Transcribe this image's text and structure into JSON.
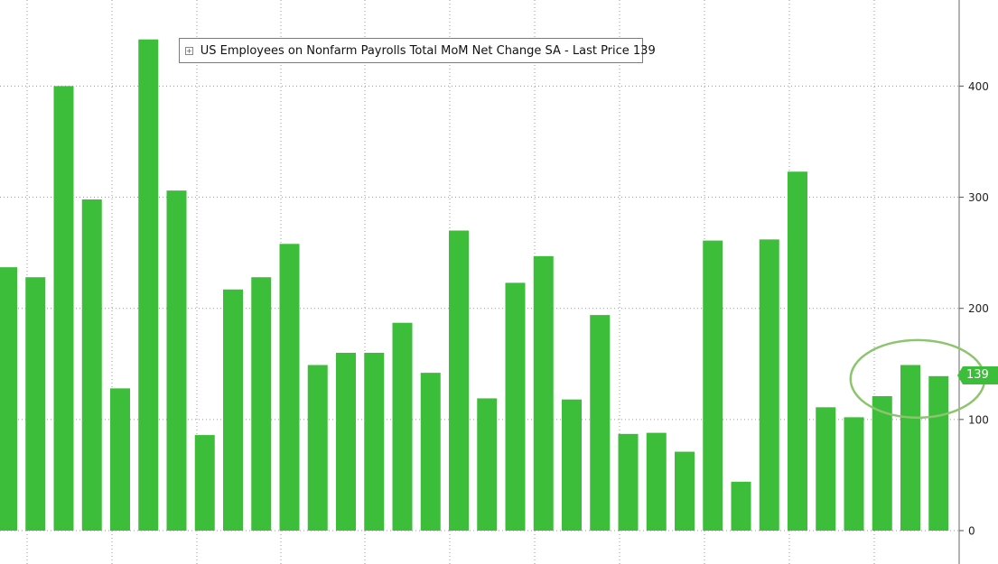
{
  "legend": {
    "expand_symbol": "+",
    "label": "US Employees on Nonfarm Payrolls Total MoM Net Change SA - Last Price 139"
  },
  "last_price_label": "139",
  "colors": {
    "bar": "#3dbe3a",
    "grid": "#9a9a9a",
    "axis_text": "#222222",
    "highlight_circle": "#8cc56e"
  },
  "chart_data": {
    "type": "bar",
    "y_ticks": [
      "0",
      "100",
      "200",
      "300",
      "400"
    ],
    "ylim": [
      0,
      470
    ],
    "grid": true,
    "legend_position": "top-left",
    "highlighted_last_bars": 3,
    "values": [
      237,
      228,
      400,
      298,
      128,
      442,
      306,
      86,
      217,
      228,
      258,
      149,
      160,
      160,
      187,
      142,
      270,
      119,
      223,
      247,
      118,
      194,
      87,
      88,
      71,
      261,
      44,
      262,
      323,
      111,
      102,
      121,
      149,
      139
    ]
  }
}
